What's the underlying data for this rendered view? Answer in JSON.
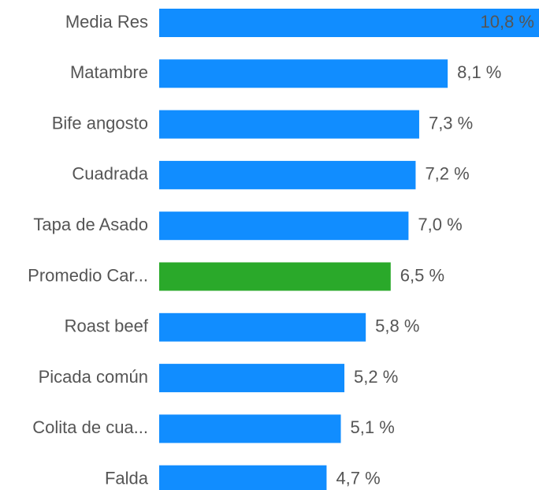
{
  "chart_data": {
    "type": "barh",
    "categories": [
      "Media Res",
      "Matambre",
      "Bife angosto",
      "Cuadrada",
      "Tapa de Asado",
      "Promedio Car...",
      "Roast beef",
      "Picada común",
      "Colita de cua...",
      "Falda"
    ],
    "values": [
      10.8,
      8.1,
      7.3,
      7.2,
      7.0,
      6.5,
      5.8,
      5.2,
      5.1,
      4.7
    ],
    "value_labels": [
      "10,8 %",
      "8,1 %",
      "7,3 %",
      "7,2 %",
      "7,0 %",
      "6,5 %",
      "5,8 %",
      "5,2 %",
      "5,1 %",
      "4,7 %"
    ],
    "colors": [
      "#118dff",
      "#118dff",
      "#118dff",
      "#118dff",
      "#118dff",
      "#2aa92a",
      "#118dff",
      "#118dff",
      "#118dff",
      "#118dff"
    ]
  }
}
